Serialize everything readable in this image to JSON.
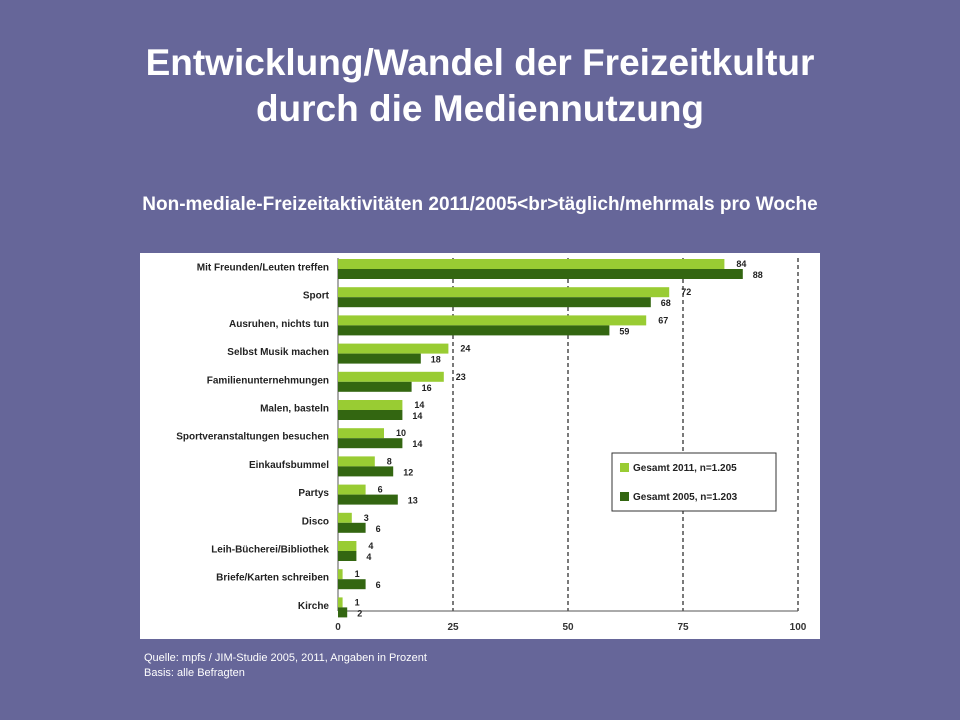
{
  "slide": {
    "title_line1": "Entwicklung/Wandel der Freizeitkultur",
    "title_line2": "durch die Mediennutzung",
    "subtitle": "Non-mediale-Freizeitaktivitäten 2011/2005<br>täglich/mehrmals pro Woche",
    "source_line1": "Quelle: mpfs / JIM-Studie 2005, 2011, Angaben in Prozent",
    "source_line2": "Basis: alle Befragten"
  },
  "colors": {
    "background": "#666699",
    "series_2011": "#99cc33",
    "series_2005": "#336611"
  },
  "chart_data": {
    "type": "bar",
    "orientation": "horizontal",
    "categories": [
      "Mit Freunden/Leuten treffen",
      "Sport",
      "Ausruhen, nichts tun",
      "Selbst Musik machen",
      "Familienunternehmungen",
      "Malen, basteln",
      "Sportveranstaltungen besuchen",
      "Einkaufsbummel",
      "Partys",
      "Disco",
      "Leih-Bücherei/Bibliothek",
      "Briefe/Karten schreiben",
      "Kirche"
    ],
    "series": [
      {
        "name": "Gesamt 2011, n=1.205",
        "values": [
          84,
          72,
          67,
          24,
          23,
          14,
          10,
          8,
          6,
          3,
          4,
          1,
          1
        ]
      },
      {
        "name": "Gesamt 2005, n=1.203",
        "values": [
          88,
          68,
          59,
          18,
          16,
          14,
          14,
          12,
          13,
          6,
          4,
          6,
          2
        ]
      }
    ],
    "xlim": [
      0,
      100
    ],
    "xticks": [
      0,
      25,
      50,
      75,
      100
    ],
    "grid": "dashed vertical",
    "legend_position": "lower-right"
  }
}
